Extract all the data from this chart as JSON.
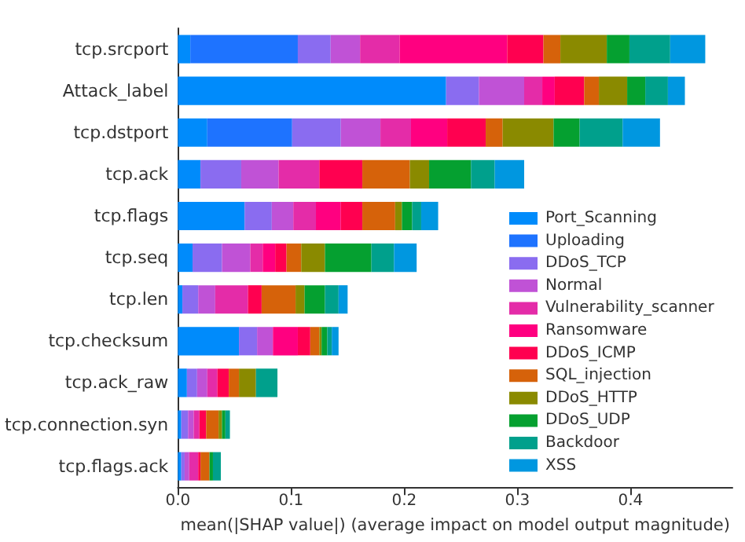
{
  "chart_data": {
    "type": "bar",
    "orientation": "horizontal",
    "stacked": true,
    "xlabel": "mean(|SHAP value|) (average impact on model output magnitude)",
    "categories": [
      "tcp.srcport",
      "Attack_label",
      "tcp.dstport",
      "tcp.ack",
      "tcp.flags",
      "tcp.seq",
      "tcp.len",
      "tcp.checksum",
      "tcp.ack_raw",
      "tcp.connection.syn",
      "tcp.flags.ack"
    ],
    "series": [
      {
        "name": "Port_Scanning",
        "color": "#008bfb",
        "values": [
          0.011,
          0.237,
          0.026,
          0.02,
          0.059,
          0.013,
          0.004,
          0.054,
          0.008,
          0.003,
          0.003
        ]
      },
      {
        "name": "Uploading",
        "color": "#1e73ff",
        "values": [
          0.095,
          0,
          0.075,
          0,
          0,
          0,
          0,
          0,
          0,
          0,
          0
        ]
      },
      {
        "name": "DDoS_TCP",
        "color": "#8a6cf0",
        "values": [
          0.029,
          0.029,
          0.043,
          0.036,
          0.024,
          0.026,
          0.014,
          0.016,
          0.009,
          0.006,
          0.003
        ]
      },
      {
        "name": "Normal",
        "color": "#c052d6",
        "values": [
          0.026,
          0.04,
          0.035,
          0.033,
          0.019,
          0.025,
          0.015,
          0.014,
          0.009,
          0.005,
          0.004
        ]
      },
      {
        "name": "Vulnerability_scanner",
        "color": "#e42ca8",
        "values": [
          0.035,
          0.016,
          0.027,
          0.036,
          0.02,
          0.011,
          0.029,
          0,
          0.009,
          0.005,
          0.008
        ]
      },
      {
        "name": "Ransomware",
        "color": "#ff0080",
        "values": [
          0.095,
          0.011,
          0.032,
          0,
          0.022,
          0.011,
          0,
          0.022,
          0,
          0,
          0
        ]
      },
      {
        "name": "DDoS_ICMP",
        "color": "#ff0050",
        "values": [
          0.032,
          0.026,
          0.034,
          0.038,
          0.019,
          0.01,
          0.012,
          0.011,
          0.01,
          0.006,
          0.002
        ]
      },
      {
        "name": "SQL_injection",
        "color": "#d6620a",
        "values": [
          0.015,
          0.013,
          0.015,
          0.042,
          0.029,
          0.013,
          0.03,
          0.008,
          0.009,
          0.011,
          0.008
        ]
      },
      {
        "name": "DDoS_HTTP",
        "color": "#8a8a00",
        "values": [
          0.041,
          0.025,
          0.045,
          0.017,
          0.006,
          0.021,
          0.008,
          0.002,
          0.015,
          0.003,
          0
        ]
      },
      {
        "name": "DDoS_UDP",
        "color": "#05a030",
        "values": [
          0.02,
          0.016,
          0.023,
          0.037,
          0.009,
          0.041,
          0.018,
          0.005,
          0,
          0.003,
          0.003
        ]
      },
      {
        "name": "Backdoor",
        "color": "#00a08c",
        "values": [
          0.036,
          0.02,
          0.038,
          0.021,
          0.008,
          0.02,
          0.012,
          0.004,
          0.019,
          0.004,
          0.007
        ]
      },
      {
        "name": "XSS",
        "color": "#0097e0",
        "values": [
          0.031,
          0.015,
          0.033,
          0.026,
          0.015,
          0.02,
          0.008,
          0.006,
          0,
          0,
          0
        ]
      }
    ],
    "xlim": [
      0,
      0.49
    ],
    "xticks": [
      {
        "value": 0,
        "label": "0.0"
      },
      0.1,
      0.2,
      0.3,
      0.4
    ],
    "legend": "center right",
    "grid": false
  }
}
